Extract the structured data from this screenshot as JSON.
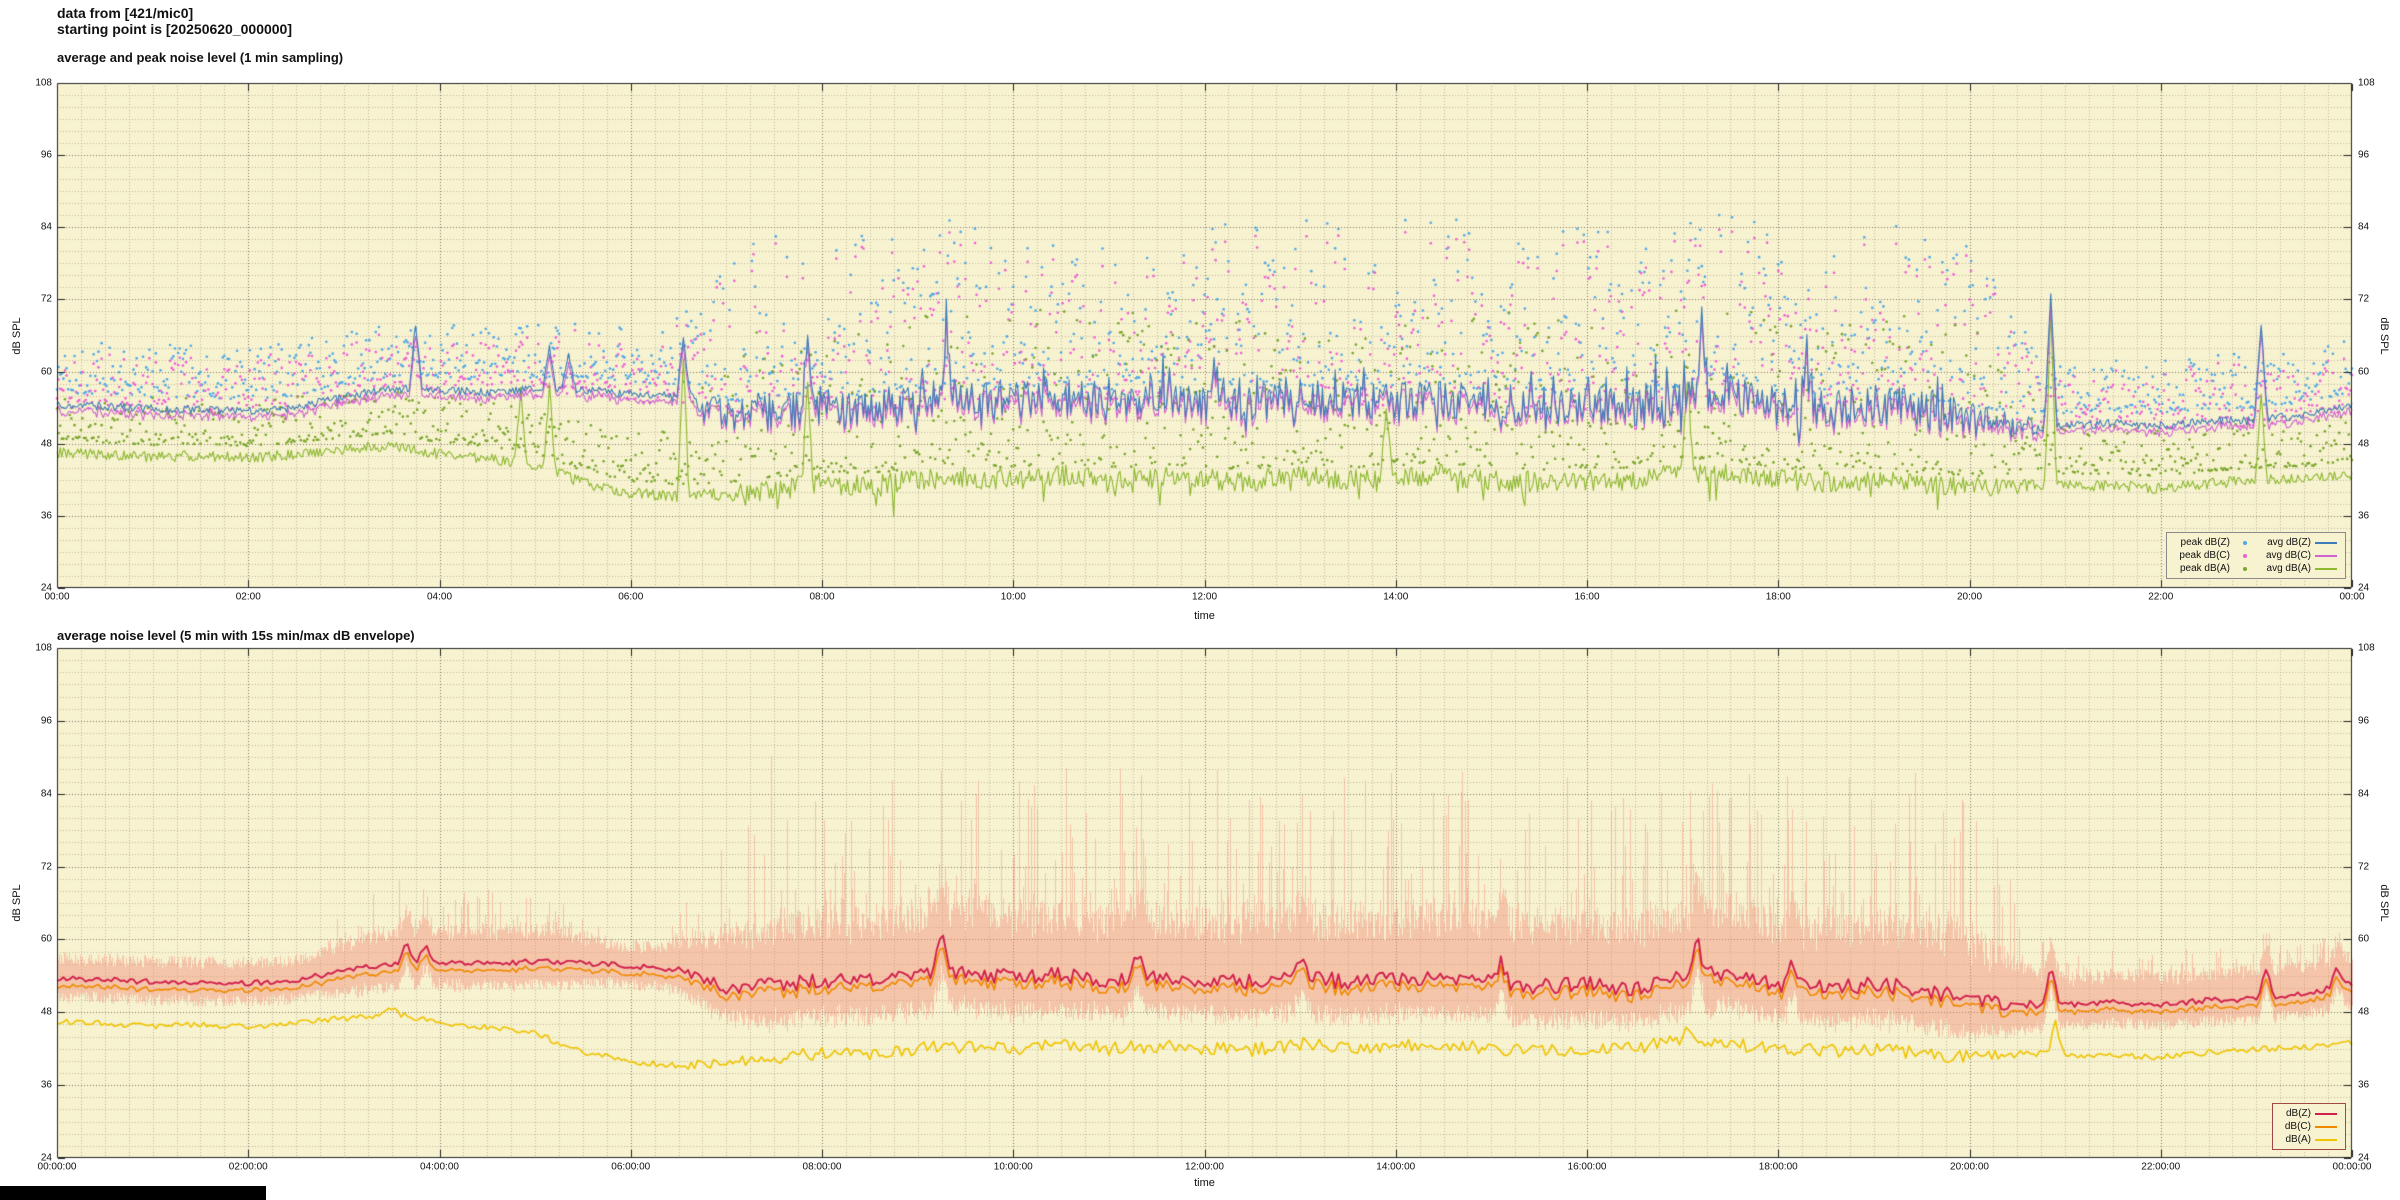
{
  "header": {
    "line1": "data from [421/mic0]",
    "line2": "starting point is [20250620_000000]"
  },
  "colors": {
    "page_bg": "#ffffff",
    "plot_bg": "#f7f2d0",
    "grid_minor": "rgba(150,144,118,0.55)",
    "grid_major": "rgba(105,100,80,0.85)",
    "axis": "#222222",
    "text": "#111111",
    "corner_bar": "#000000"
  },
  "noise_seed": 1337,
  "chart_data": [
    {
      "type": "line",
      "subtype": "scatter+line time series",
      "title": "average and peak noise level (1 min sampling)",
      "xlabel": "time",
      "ylabel_left": "dB SPL",
      "ylabel_right": "dB SPL",
      "ylim": [
        24,
        108
      ],
      "yticks": [
        24,
        36,
        48,
        60,
        72,
        84,
        96,
        108
      ],
      "x_range_hours": [
        0,
        24
      ],
      "xtick_hours": [
        0,
        2,
        4,
        6,
        8,
        10,
        12,
        14,
        16,
        18,
        20,
        22,
        24
      ],
      "xtick_labels": [
        "00:00",
        "02:00",
        "04:00",
        "06:00",
        "08:00",
        "10:00",
        "12:00",
        "14:00",
        "16:00",
        "18:00",
        "20:00",
        "22:00",
        "00:00"
      ],
      "grid": true,
      "legend_position": "bottom-right",
      "x_step_hours": 0.5,
      "series": [
        {
          "name": "peak dB(Z)",
          "kind": "scatter",
          "color": "#4fa8e8",
          "derived_from": "avg dB(Z)",
          "spread_night_db": 9,
          "spread_day_db": 28
        },
        {
          "name": "peak dB(C)",
          "kind": "scatter",
          "color": "#ee5fd6",
          "derived_from": "peak dB(Z)",
          "offset_db": [
            -1,
            -3.5
          ]
        },
        {
          "name": "peak dB(A)",
          "kind": "scatter",
          "color": "#7aa62a",
          "derived_from": "avg dB(A)",
          "spread_night_db": 8,
          "spread_day_db": 26
        },
        {
          "name": "avg dB(Z)",
          "kind": "line",
          "color": "#3d7cb8",
          "noise_night_db": 0.7,
          "noise_day_db": 3.2,
          "base_db": [
            54.5,
            54.2,
            53.8,
            53.6,
            53.4,
            54.0,
            55.8,
            57.2,
            56.8,
            56.6,
            57.0,
            57.0,
            56.2,
            55.8,
            53.0,
            53.4,
            54.6,
            54.0,
            55.0,
            55.8,
            55.2,
            55.8,
            55.0,
            55.6,
            55.0,
            54.8,
            55.6,
            55.0,
            55.2,
            55.6,
            55.0,
            54.4,
            54.8,
            54.2,
            55.6,
            56.4,
            54.2,
            54.0,
            54.6,
            53.8,
            52.0,
            51.0,
            51.0,
            51.4,
            51.0,
            51.8,
            52.0,
            52.8,
            54.6
          ],
          "spikes": [
            [
              3.75,
              68
            ],
            [
              5.15,
              64
            ],
            [
              5.35,
              63
            ],
            [
              6.55,
              66
            ],
            [
              7.85,
              66
            ],
            [
              9.3,
              64
            ],
            [
              12.1,
              63
            ],
            [
              17.2,
              68
            ],
            [
              18.3,
              64
            ],
            [
              20.85,
              72
            ],
            [
              23.05,
              68
            ]
          ]
        },
        {
          "name": "avg dB(C)",
          "kind": "line",
          "color": "#cf63cf",
          "noise_night_db": 0.7,
          "noise_day_db": 3.0,
          "base_db": [
            53.5,
            53.2,
            52.8,
            52.6,
            52.4,
            53.0,
            54.8,
            56.2,
            55.8,
            55.6,
            56.0,
            56.0,
            55.2,
            54.8,
            52.0,
            52.4,
            53.6,
            53.0,
            54.0,
            54.8,
            54.2,
            54.8,
            54.0,
            54.6,
            54.0,
            53.8,
            54.6,
            54.0,
            54.2,
            54.6,
            54.0,
            53.4,
            53.8,
            53.2,
            54.6,
            55.4,
            53.2,
            53.0,
            53.6,
            52.8,
            51.0,
            50.0,
            50.0,
            50.4,
            50.0,
            50.8,
            51.0,
            51.8,
            53.6
          ],
          "spikes": [
            [
              3.75,
              66.5
            ],
            [
              5.15,
              62.5
            ],
            [
              5.35,
              61.5
            ],
            [
              6.55,
              64.5
            ],
            [
              7.85,
              64.5
            ],
            [
              9.3,
              62.5
            ],
            [
              12.1,
              61.5
            ],
            [
              17.2,
              66.5
            ],
            [
              18.3,
              62.5
            ],
            [
              20.85,
              70.5
            ],
            [
              23.05,
              66.5
            ]
          ]
        },
        {
          "name": "avg dB(A)",
          "kind": "line",
          "color": "#8db830",
          "noise_night_db": 0.9,
          "noise_day_db": 1.8,
          "base_db": [
            46.5,
            46.2,
            45.8,
            46.0,
            45.6,
            46.2,
            47.0,
            47.8,
            46.2,
            45.6,
            44.5,
            41.5,
            39.8,
            39.2,
            39.6,
            40.4,
            41.4,
            41.0,
            42.0,
            42.4,
            42.0,
            42.8,
            42.0,
            42.4,
            42.0,
            41.8,
            42.8,
            42.0,
            42.4,
            42.8,
            42.0,
            41.6,
            42.0,
            42.0,
            43.6,
            42.8,
            42.0,
            41.6,
            42.0,
            41.2,
            40.6,
            41.0,
            41.0,
            41.0,
            40.6,
            41.4,
            42.0,
            42.2,
            43.0
          ],
          "spikes": [
            [
              4.85,
              57
            ],
            [
              5.15,
              57.5
            ],
            [
              6.55,
              62
            ],
            [
              7.85,
              58
            ],
            [
              13.9,
              54
            ],
            [
              17.05,
              60
            ],
            [
              20.85,
              70
            ],
            [
              23.05,
              56
            ]
          ]
        }
      ]
    },
    {
      "type": "line",
      "subtype": "line time series with min/max envelope band",
      "title": "average noise level (5 min with 15s min/max dB envelope)",
      "xlabel": "time",
      "ylabel_left": "dB SPL",
      "ylabel_right": "dB SPL",
      "ylim": [
        24,
        108
      ],
      "yticks": [
        24,
        36,
        48,
        60,
        72,
        84,
        96,
        108
      ],
      "x_range_hours": [
        0,
        24
      ],
      "xtick_hours": [
        0,
        2,
        4,
        6,
        8,
        10,
        12,
        14,
        16,
        18,
        20,
        22,
        24
      ],
      "xtick_labels": [
        "00:00:00",
        "02:00:00",
        "04:00:00",
        "06:00:00",
        "08:00:00",
        "10:00:00",
        "12:00:00",
        "14:00:00",
        "16:00:00",
        "18:00:00",
        "20:00:00",
        "22:00:00",
        "00:00:00"
      ],
      "grid": true,
      "legend_position": "bottom-right",
      "x_step_hours": 0.5,
      "series": [
        {
          "name": "dB(Z)",
          "kind": "line",
          "color": "#d2204c",
          "noise_night_db": 0.45,
          "noise_day_db": 1.3,
          "base_db": [
            53.5,
            53.4,
            53.0,
            52.9,
            52.8,
            53.3,
            54.8,
            56.0,
            56.2,
            56.1,
            56.3,
            56.2,
            55.6,
            55.0,
            52.0,
            52.4,
            53.4,
            53.0,
            53.8,
            55.0,
            53.6,
            54.2,
            53.4,
            54.0,
            53.2,
            53.0,
            53.8,
            53.0,
            53.4,
            53.8,
            53.0,
            52.2,
            52.6,
            52.0,
            54.0,
            54.6,
            52.4,
            52.0,
            52.6,
            51.8,
            50.0,
            49.2,
            49.2,
            49.6,
            49.2,
            50.0,
            50.2,
            51.0,
            52.8
          ],
          "spikes": [
            [
              3.65,
              59.8
            ],
            [
              3.85,
              59.2
            ],
            [
              9.25,
              60.5
            ],
            [
              11.3,
              58
            ],
            [
              13.0,
              57.5
            ],
            [
              15.1,
              57
            ],
            [
              17.15,
              60.2
            ],
            [
              18.15,
              56.5
            ],
            [
              20.85,
              55.5
            ],
            [
              23.1,
              55.2
            ],
            [
              23.85,
              55.5
            ]
          ]
        },
        {
          "name": "dB(C)",
          "kind": "line",
          "color": "#ef8a00",
          "noise_night_db": 0.45,
          "noise_day_db": 1.2,
          "base_db": [
            52.3,
            52.2,
            51.8,
            51.7,
            51.6,
            52.1,
            53.6,
            54.8,
            55.0,
            54.9,
            55.1,
            55.0,
            54.4,
            53.8,
            50.8,
            51.2,
            52.2,
            51.8,
            52.6,
            53.8,
            52.4,
            53.0,
            52.2,
            52.8,
            52.0,
            51.8,
            52.6,
            51.8,
            52.2,
            52.6,
            51.8,
            51.0,
            51.4,
            50.8,
            52.8,
            53.4,
            51.2,
            50.8,
            51.4,
            50.6,
            48.8,
            48.0,
            48.0,
            48.4,
            48.0,
            48.8,
            49.0,
            49.8,
            51.6
          ],
          "spikes": [
            [
              3.65,
              58.3
            ],
            [
              3.85,
              57.7
            ],
            [
              9.25,
              58.5
            ],
            [
              11.3,
              56.5
            ],
            [
              13.0,
              56.0
            ],
            [
              15.1,
              55.5
            ],
            [
              17.15,
              58.5
            ],
            [
              18.15,
              55.0
            ],
            [
              20.85,
              54.0
            ],
            [
              23.1,
              53.7
            ],
            [
              23.85,
              54.0
            ]
          ]
        },
        {
          "name": "dB(A)",
          "kind": "line",
          "color": "#efc400",
          "noise_night_db": 0.5,
          "noise_day_db": 1.1,
          "base_db": [
            46.5,
            46.2,
            45.8,
            46.0,
            45.6,
            46.2,
            47.0,
            47.8,
            46.2,
            45.6,
            44.5,
            41.5,
            39.8,
            39.2,
            39.6,
            40.4,
            41.4,
            41.0,
            42.0,
            42.4,
            42.0,
            42.8,
            42.0,
            42.4,
            42.0,
            41.8,
            42.8,
            42.0,
            42.4,
            42.8,
            42.0,
            41.6,
            42.0,
            42.0,
            43.6,
            42.8,
            42.0,
            41.6,
            42.0,
            41.2,
            40.6,
            41.0,
            41.0,
            41.0,
            40.6,
            41.4,
            42.0,
            42.2,
            43.0
          ],
          "spikes": [
            [
              3.5,
              48.5
            ],
            [
              17.05,
              45.5
            ],
            [
              20.9,
              46.5
            ]
          ]
        }
      ],
      "envelope": {
        "attached_to": "dB(Z)",
        "color": "rgba(242,136,116,0.42)",
        "night_up_db": [
          2.2,
          4.4
        ],
        "day_up_db": [
          5.5,
          12
        ],
        "spike_probability": 0.3,
        "spike_extra_max_db": 26,
        "night_down_db": [
          2,
          4
        ],
        "day_down_db": [
          3.5,
          6.5
        ]
      }
    }
  ]
}
